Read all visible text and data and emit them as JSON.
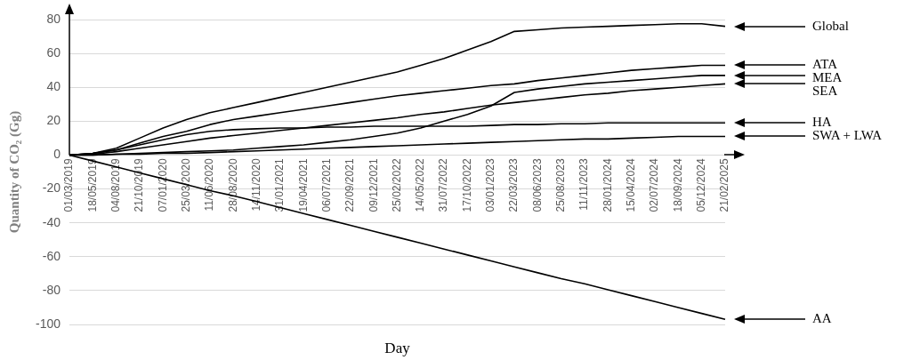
{
  "chart_data": {
    "type": "line",
    "xlabel": "Day",
    "ylabel": "Quantity of CO₂ (Gg)",
    "categories": [
      "01/03/2019",
      "18/05/2019",
      "04/08/2019",
      "21/10/2019",
      "07/01/2020",
      "25/03/2020",
      "11/06/2020",
      "28/08/2020",
      "14/11/2020",
      "31/01/2021",
      "19/04/2021",
      "06/07/2021",
      "22/09/2021",
      "09/12/2021",
      "25/02/2022",
      "14/05/2022",
      "31/07/2022",
      "17/10/2022",
      "03/01/2023",
      "22/03/2023",
      "08/06/2023",
      "25/08/2023",
      "11/11/2023",
      "28/01/2024",
      "15/04/2024",
      "02/07/2024",
      "18/09/2024",
      "05/12/2024",
      "21/02/2025"
    ],
    "series": [
      {
        "name": "Global",
        "color": "#000000",
        "values": [
          0,
          1,
          4,
          10,
          16,
          21,
          25,
          28,
          31,
          34,
          37,
          40,
          43,
          46,
          49,
          53,
          57,
          62,
          67,
          73,
          74,
          75,
          75.5,
          76,
          76.5,
          77,
          77.5,
          77.5,
          76
        ]
      },
      {
        "name": "ATA",
        "color": "#000000",
        "values": [
          0,
          1,
          3,
          7,
          11,
          14,
          18,
          21,
          23,
          25,
          27,
          29,
          31,
          33,
          35,
          36.5,
          38,
          39.5,
          41,
          42,
          44,
          45.5,
          47,
          48.5,
          50,
          51,
          52,
          53,
          53
        ]
      },
      {
        "name": "MEA",
        "color": "#000000",
        "values": [
          0,
          0,
          0.5,
          1,
          1.5,
          2,
          2.5,
          3,
          4,
          5,
          6,
          7.5,
          9,
          11,
          13,
          16,
          20,
          24,
          29,
          37,
          39,
          40.5,
          42,
          43,
          44,
          45,
          46,
          47,
          47
        ]
      },
      {
        "name": "SEA",
        "color": "#000000",
        "values": [
          0,
          0.5,
          2,
          4,
          6,
          8,
          10,
          11.5,
          13,
          14.5,
          16,
          17.5,
          19,
          20.5,
          22,
          24,
          25.5,
          27.5,
          29.5,
          31,
          32.5,
          34,
          35.5,
          36.5,
          38,
          39,
          40,
          41,
          42
        ]
      },
      {
        "name": "HA",
        "color": "#000000",
        "values": [
          0,
          1,
          3,
          6,
          9,
          12,
          14,
          15,
          15.5,
          16,
          16,
          16.5,
          16.5,
          17,
          17,
          17,
          17,
          17,
          17.5,
          18,
          18,
          18.5,
          18.5,
          19,
          19,
          19,
          19,
          19,
          19
        ]
      },
      {
        "name": "SWA + LWA",
        "color": "#000000",
        "values": [
          0,
          0,
          0.5,
          0.5,
          1,
          1,
          1.5,
          2,
          2.5,
          3,
          3.5,
          4,
          4.5,
          5,
          5.5,
          6,
          6.5,
          7,
          7.5,
          8,
          8.5,
          9,
          9.5,
          9.5,
          10,
          10.5,
          11,
          11,
          11
        ]
      },
      {
        "name": "AA",
        "color": "#000000",
        "values": [
          0,
          -3.5,
          -7,
          -10.5,
          -14,
          -17.5,
          -21,
          -24,
          -27.5,
          -31,
          -34.5,
          -38,
          -41.5,
          -45,
          -48.5,
          -52,
          -55.5,
          -59,
          -62.5,
          -66,
          -69.5,
          -73,
          -76,
          -79.5,
          -83,
          -86.5,
          -90,
          -93.5,
          -97
        ]
      }
    ],
    "ylim": [
      -100,
      80
    ],
    "yticks": [
      -100,
      -80,
      -60,
      -40,
      -20,
      0,
      20,
      40,
      60,
      80
    ],
    "grid": "y",
    "legend": "right",
    "marker": "none",
    "line_style": "solid"
  }
}
